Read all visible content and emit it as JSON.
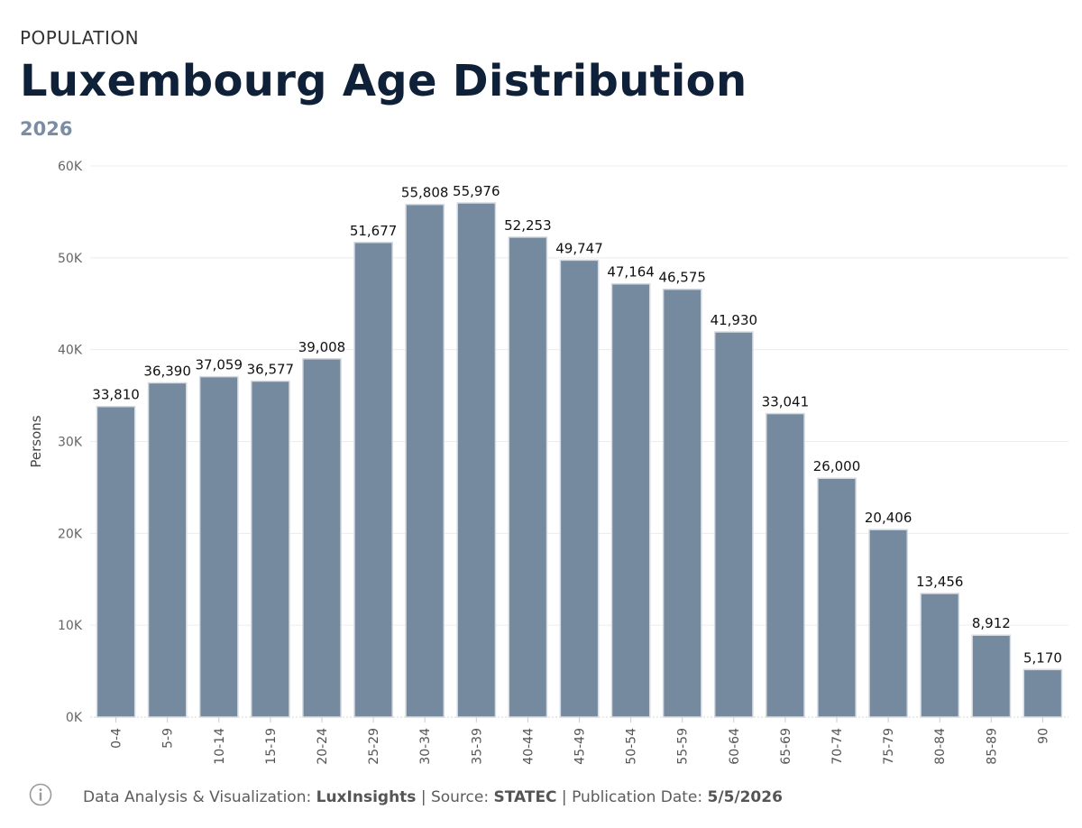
{
  "header": {
    "kicker": "POPULATION",
    "title": "Luxembourg Age Distribution",
    "subtitle": "2026"
  },
  "footer": {
    "analysis_label": "Data Analysis & Visualization: ",
    "analysis_value": "LuxInsights",
    "sep1": " | Source: ",
    "source_value": "STATEC",
    "sep2": "  | Publication Date: ",
    "date_value": "5/5/2026",
    "info_icon": "info-circle-icon"
  },
  "colors": {
    "bar": "#768a9f",
    "title": "#0f2139",
    "subtitle": "#7a8da3"
  },
  "chart_data": {
    "type": "bar",
    "title": "Luxembourg Age Distribution",
    "subtitle": "2026",
    "xlabel": "",
    "ylabel": "Persons",
    "ylim": [
      0,
      60000
    ],
    "yticks": [
      0,
      10000,
      20000,
      30000,
      40000,
      50000,
      60000
    ],
    "ytick_labels": [
      "0K",
      "10K",
      "20K",
      "30K",
      "40K",
      "50K",
      "60K"
    ],
    "grid": true,
    "categories": [
      "0-4",
      "5-9",
      "10-14",
      "15-19",
      "20-24",
      "25-29",
      "30-34",
      "35-39",
      "40-44",
      "45-49",
      "50-54",
      "55-59",
      "60-64",
      "65-69",
      "70-74",
      "75-79",
      "80-84",
      "85-89",
      "90"
    ],
    "values": [
      33810,
      36390,
      37059,
      36577,
      39008,
      51677,
      55808,
      55976,
      52253,
      49747,
      47164,
      46575,
      41930,
      33041,
      26000,
      20406,
      13456,
      8912,
      5170
    ],
    "data_labels": [
      "33,810",
      "36,390",
      "37,059",
      "36,577",
      "39,008",
      "51,677",
      "55,808",
      "55,976",
      "52,253",
      "49,747",
      "47,164",
      "46,575",
      "41,930",
      "33,041",
      "26,000",
      "20,406",
      "13,456",
      "8,912",
      "5,170"
    ]
  }
}
